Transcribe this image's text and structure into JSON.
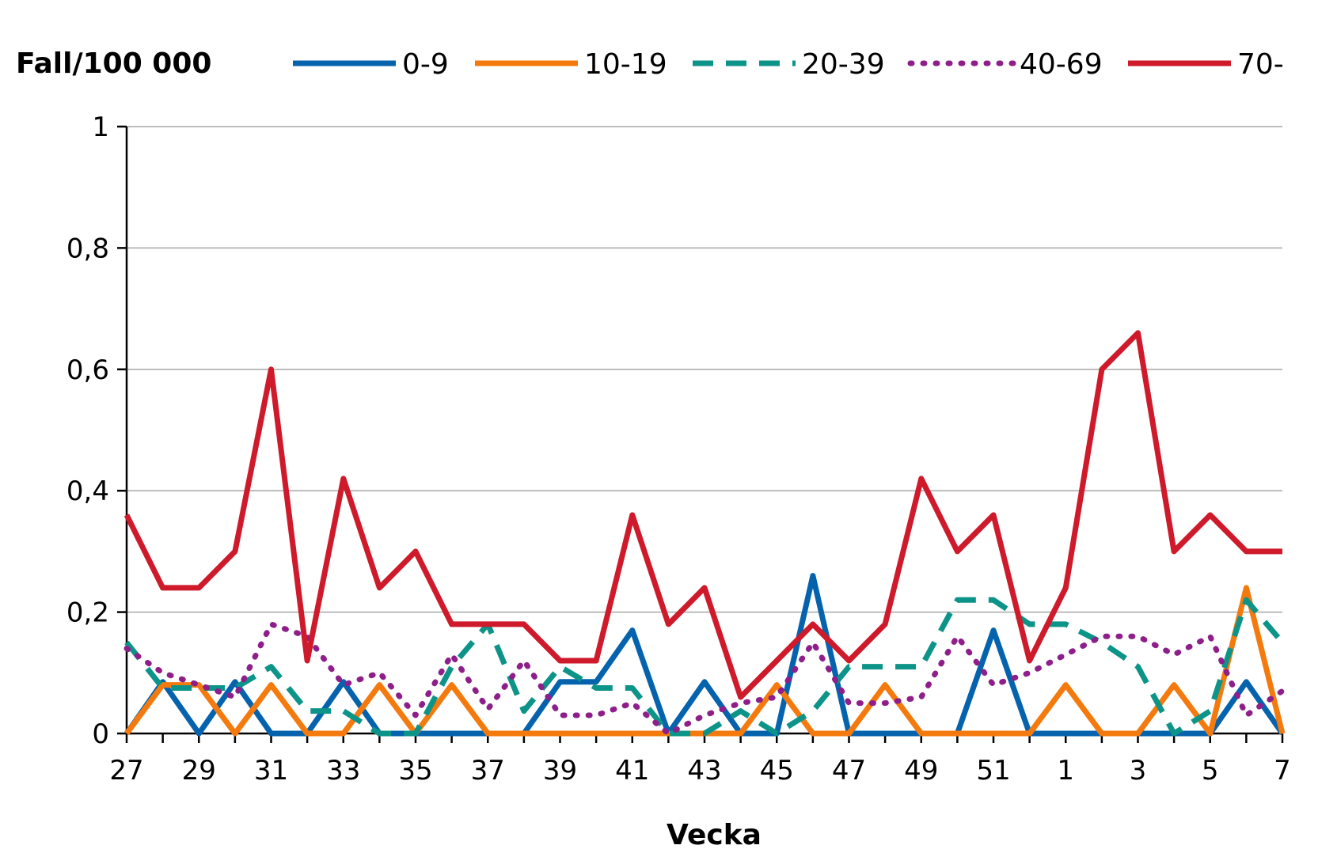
{
  "chart_data": {
    "type": "line",
    "title": "",
    "ylabel": "Fall/100 000",
    "xlabel": "Vecka",
    "ylim": [
      0,
      1
    ],
    "yticks": [
      0,
      0.2,
      0.4,
      0.6,
      0.8,
      1
    ],
    "ytick_labels": [
      "0",
      "0,2",
      "0,4",
      "0,6",
      "0,8",
      "1"
    ],
    "grid": true,
    "legend_position": "top",
    "categories": [
      "27",
      "28",
      "29",
      "30",
      "31",
      "32",
      "33",
      "34",
      "35",
      "36",
      "37",
      "38",
      "39",
      "40",
      "41",
      "42",
      "43",
      "44",
      "45",
      "46",
      "47",
      "48",
      "49",
      "50",
      "51",
      "52",
      "1",
      "2",
      "3",
      "4",
      "5",
      "6",
      "7"
    ],
    "x_tick_labels": [
      "27",
      "29",
      "31",
      "33",
      "35",
      "37",
      "39",
      "41",
      "43",
      "45",
      "47",
      "49",
      "51",
      "1",
      "3",
      "5",
      "7"
    ],
    "series": [
      {
        "name": "0-9",
        "color": "#0563AE",
        "dash": "solid",
        "values": [
          0,
          0.085,
          0,
          0.085,
          0,
          0,
          0.085,
          0,
          0,
          0,
          0,
          0,
          0.085,
          0.085,
          0.17,
          0,
          0.085,
          0,
          0,
          0.26,
          0,
          0,
          0,
          0,
          0.17,
          0,
          0,
          0,
          0,
          0,
          0,
          0.085,
          0
        ]
      },
      {
        "name": "10-19",
        "color": "#F57A0E",
        "dash": "solid",
        "values": [
          0,
          0.08,
          0.08,
          0,
          0.08,
          0,
          0,
          0.08,
          0,
          0.08,
          0,
          0,
          0,
          0,
          0,
          0,
          0,
          0,
          0.08,
          0,
          0,
          0.08,
          0,
          0,
          0,
          0,
          0.08,
          0,
          0,
          0.08,
          0,
          0.24,
          0
        ]
      },
      {
        "name": "20-39",
        "color": "#0D9488",
        "dash": "dashed",
        "values": [
          0.15,
          0.075,
          0.075,
          0.075,
          0.11,
          0.037,
          0.037,
          0,
          0,
          0.11,
          0.18,
          0.037,
          0.11,
          0.075,
          0.075,
          0,
          0,
          0.037,
          0,
          0.037,
          0.11,
          0.11,
          0.11,
          0.22,
          0.22,
          0.18,
          0.18,
          0.15,
          0.11,
          0,
          0.037,
          0.22,
          0.15
        ]
      },
      {
        "name": "40-69",
        "color": "#8E1F8A",
        "dash": "dotted",
        "values": [
          0.14,
          0.1,
          0.08,
          0.06,
          0.18,
          0.16,
          0.08,
          0.1,
          0.03,
          0.13,
          0.04,
          0.12,
          0.03,
          0.03,
          0.05,
          0,
          0.03,
          0.05,
          0.06,
          0.15,
          0.05,
          0.05,
          0.06,
          0.16,
          0.08,
          0.1,
          0.13,
          0.16,
          0.16,
          0.13,
          0.16,
          0.03,
          0.07
        ]
      },
      {
        "name": "70-",
        "color": "#CE1A2B",
        "dash": "solid",
        "values": [
          0.36,
          0.24,
          0.24,
          0.3,
          0.6,
          0.12,
          0.42,
          0.24,
          0.3,
          0.18,
          0.18,
          0.18,
          0.12,
          0.12,
          0.36,
          0.18,
          0.24,
          0.06,
          0.12,
          0.18,
          0.12,
          0.18,
          0.42,
          0.3,
          0.36,
          0.12,
          0.24,
          0.6,
          0.66,
          0.3,
          0.36,
          0.3,
          0.3
        ]
      }
    ]
  }
}
